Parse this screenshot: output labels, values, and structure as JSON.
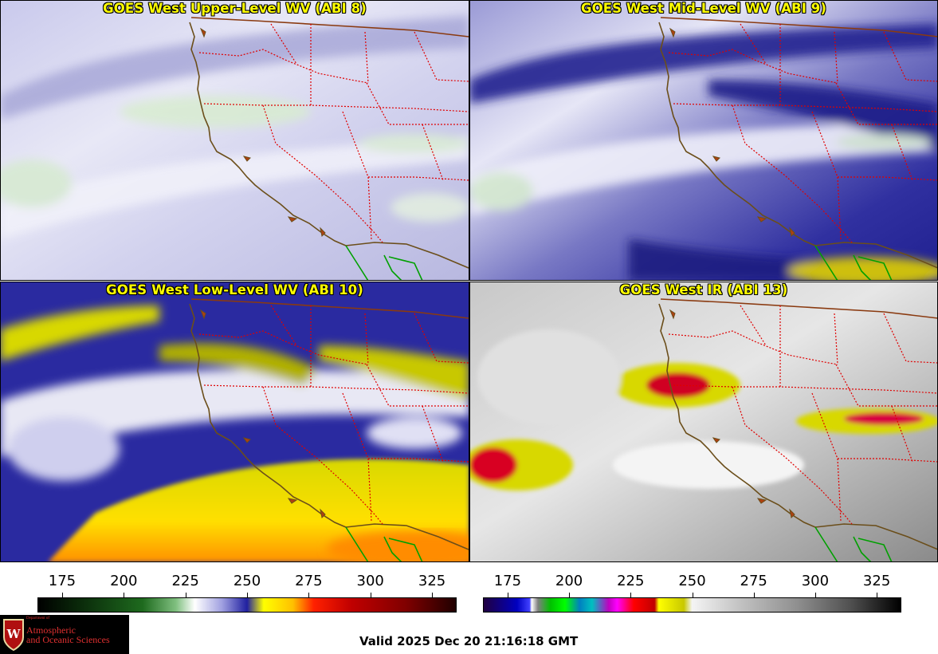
{
  "panels": {
    "upper": {
      "title": "GOES West Upper-Level WV (ABI 8)"
    },
    "mid": {
      "title": "GOES West Mid-Level WV (ABI 9)"
    },
    "low": {
      "title": "GOES West Low-Level WV (ABI 10)"
    },
    "ir": {
      "title": "GOES West IR (ABI 13)"
    }
  },
  "colorbars": {
    "wv": {
      "ticks": [
        "175",
        "200",
        "225",
        "250",
        "275",
        "300",
        "325"
      ]
    },
    "ir": {
      "ticks": [
        "175",
        "200",
        "225",
        "250",
        "275",
        "300",
        "325"
      ]
    }
  },
  "logo": {
    "line1": "Department of",
    "line2": "Atmospheric",
    "line3": "and Oceanic Sciences"
  },
  "valid_time": "Valid 2025 Dec 20 21:16:18 GMT",
  "colors": {
    "coastline": "#6b4e1a",
    "state_border": "#e00000",
    "mexico_border": "#00a000",
    "title_text": "#ffff00"
  }
}
